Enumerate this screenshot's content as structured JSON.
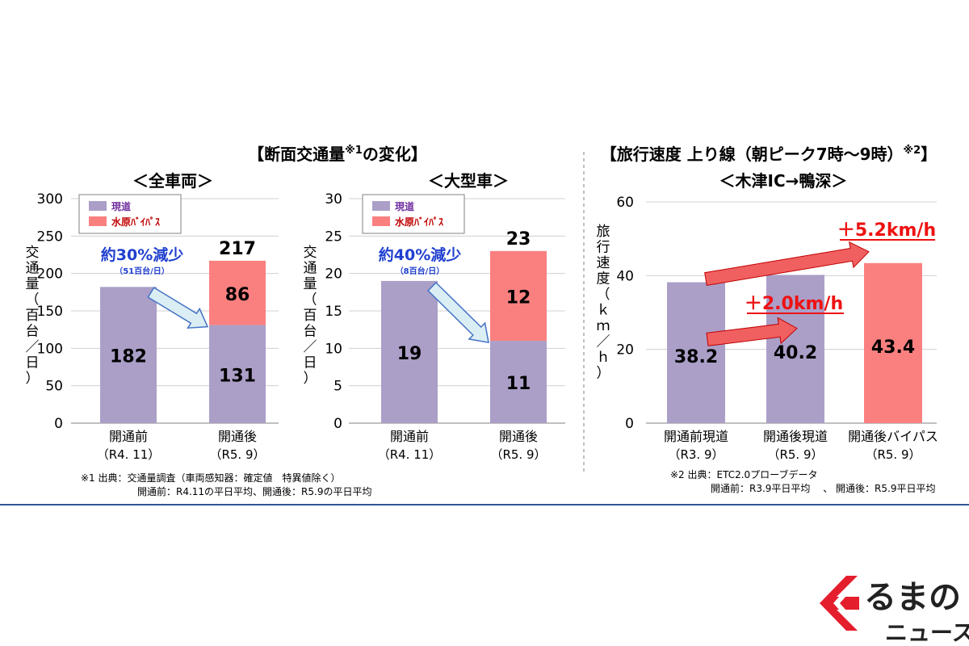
{
  "headers": {
    "left_title": "【断面交通量",
    "left_title_sup": "※1",
    "left_title_tail": "の変化】",
    "right_title": "【旅行速度 上り線（朝ピーク7時～9時）",
    "right_title_sup": "※2",
    "right_title_tail": "】"
  },
  "legend": {
    "current_road": "現道",
    "bypass": "水原ﾊﾞｲﾊﾟｽ"
  },
  "footnotes": {
    "note1_line1": "※1 出典：交通量調査（車両感知器：確定値　特異値除く）",
    "note1_line2": "開通前：R4.11の平日平均、開通後：R5.9の平日平均",
    "note2_line1": "※2 出典：ETC2.0プローブデータ",
    "note2_line2": "開通前：R3.9平日平均　 、 開通後：R5.9平日平均"
  },
  "colors": {
    "current_road": "#ab9fc8",
    "bypass": "#fa8080",
    "arrow_blue_fill": "#dbeef4",
    "arrow_blue_stroke": "#4472c4",
    "arrow_red": "#f06060",
    "annotation_blue": "#1f3fcf",
    "annotation_red": "#ee1111",
    "gridline": "#d0d0d0",
    "rule": "#2f5597"
  },
  "chart_data": [
    {
      "type": "bar",
      "subtitle": "＜全車両＞",
      "ylabel": "交通量（百台／日）",
      "ylim": [
        0,
        300
      ],
      "yticks": [
        0,
        50,
        100,
        150,
        200,
        250,
        300
      ],
      "categories": [
        {
          "line1": "開通前",
          "line2": "（R4. 11）"
        },
        {
          "line1": "開通後",
          "line2": "（R5. 9）"
        }
      ],
      "series": [
        {
          "name": "現道",
          "values": [
            182,
            131
          ]
        },
        {
          "name": "水原ﾊﾞｲﾊﾟｽ",
          "values": [
            0,
            86
          ]
        }
      ],
      "totals": [
        null,
        217
      ],
      "annotation": {
        "main": "約30%減少",
        "sub": "（51百台/日）"
      },
      "legend_position": "top-left"
    },
    {
      "type": "bar",
      "subtitle": "＜大型車＞",
      "ylabel": "交通量（百台／日）",
      "ylim": [
        0,
        30
      ],
      "yticks": [
        0,
        5,
        10,
        15,
        20,
        25,
        30
      ],
      "categories": [
        {
          "line1": "開通前",
          "line2": "（R4. 11）"
        },
        {
          "line1": "開通後",
          "line2": "（R5. 9）"
        }
      ],
      "series": [
        {
          "name": "現道",
          "values": [
            19,
            11
          ]
        },
        {
          "name": "水原ﾊﾞｲﾊﾟｽ",
          "values": [
            0,
            12
          ]
        }
      ],
      "totals": [
        null,
        23
      ],
      "annotation": {
        "main": "約40%減少",
        "sub": "（8百台/日）"
      },
      "legend_position": "top-left"
    },
    {
      "type": "bar",
      "subtitle": "＜木津IC→鴨深＞",
      "ylabel": "旅行速度（ｋｍ／ｈ）",
      "ylim": [
        0,
        60
      ],
      "yticks": [
        0,
        20,
        40,
        60
      ],
      "categories": [
        {
          "line1": "開通前現道",
          "line2": "（R3. 9）"
        },
        {
          "line1": "開通後現道",
          "line2": "（R5. 9）"
        },
        {
          "line1": "開通後バイパス",
          "line2": "（R5. 9）"
        }
      ],
      "values": [
        38.2,
        40.2,
        43.4
      ],
      "bar_colors": [
        "current_road",
        "current_road",
        "bypass"
      ],
      "annotations": [
        {
          "text": "＋5.2km/h",
          "from": 0,
          "to": 2
        },
        {
          "text": "＋2.0km/h",
          "from": 0,
          "to": 1
        }
      ]
    }
  ],
  "logo": {
    "line1": "るまの",
    "line2": "ニュース"
  }
}
